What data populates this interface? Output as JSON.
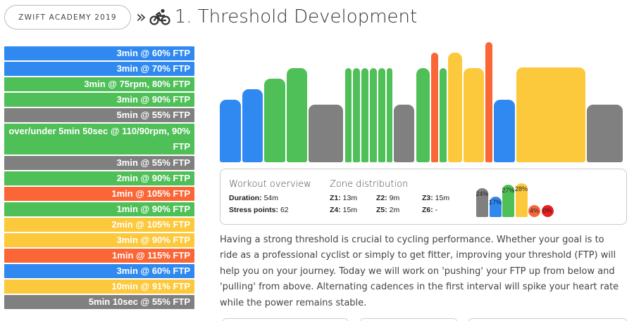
{
  "header": {
    "academy_button": "ZWIFT ACADEMY 2019",
    "separator": "»",
    "title": "1. Threshold Development"
  },
  "colors": {
    "blue": "#2f89f0",
    "green": "#4fbf58",
    "grey": "#808080",
    "yellow": "#fcc83c",
    "orange": "#fb6637",
    "red": "#ec1f1f"
  },
  "intervals": [
    {
      "label": "3min @ 60% FTP",
      "zone": "blue"
    },
    {
      "label": "3min @ 70% FTP",
      "zone": "blue"
    },
    {
      "label": "3min @ 75rpm, 80% FTP",
      "zone": "green"
    },
    {
      "label": "3min @ 90% FTP",
      "zone": "green"
    },
    {
      "label": "5min @ 55% FTP",
      "zone": "grey"
    },
    {
      "label": "over/under 5min 50sec @ 110/90rpm, 90% FTP",
      "zone": "green",
      "tall": true
    },
    {
      "label": "3min @ 55% FTP",
      "zone": "grey"
    },
    {
      "label": "2min @ 90% FTP",
      "zone": "green"
    },
    {
      "label": "1min @ 105% FTP",
      "zone": "orange"
    },
    {
      "label": "1min @ 90% FTP",
      "zone": "green"
    },
    {
      "label": "2min @ 105% FTP",
      "zone": "yellow"
    },
    {
      "label": "3min @ 90% FTP",
      "zone": "yellow"
    },
    {
      "label": "1min @ 115% FTP",
      "zone": "orange"
    },
    {
      "label": "3min @ 60% FTP",
      "zone": "blue"
    },
    {
      "label": "10min @ 91% FTP",
      "zone": "yellow"
    },
    {
      "label": "5min 10sec @ 55% FTP",
      "zone": "grey"
    }
  ],
  "workout_profile": [
    {
      "duration_min": 3,
      "ftp_pct": 60,
      "zone": "blue"
    },
    {
      "duration_min": 3,
      "ftp_pct": 70,
      "zone": "blue"
    },
    {
      "duration_min": 3,
      "ftp_pct": 80,
      "zone": "green"
    },
    {
      "duration_min": 3,
      "ftp_pct": 90,
      "zone": "green"
    },
    {
      "duration_min": 5,
      "ftp_pct": 55,
      "zone": "grey"
    },
    {
      "duration_min": 1,
      "ftp_pct": 90,
      "zone": "green"
    },
    {
      "duration_min": 1,
      "ftp_pct": 90,
      "zone": "green"
    },
    {
      "duration_min": 1,
      "ftp_pct": 90,
      "zone": "green"
    },
    {
      "duration_min": 1,
      "ftp_pct": 90,
      "zone": "green"
    },
    {
      "duration_min": 1,
      "ftp_pct": 90,
      "zone": "green"
    },
    {
      "duration_min": 0.83,
      "ftp_pct": 90,
      "zone": "green"
    },
    {
      "duration_min": 3,
      "ftp_pct": 55,
      "zone": "grey"
    },
    {
      "duration_min": 2,
      "ftp_pct": 90,
      "zone": "green"
    },
    {
      "duration_min": 1,
      "ftp_pct": 105,
      "zone": "orange"
    },
    {
      "duration_min": 1,
      "ftp_pct": 90,
      "zone": "green"
    },
    {
      "duration_min": 2,
      "ftp_pct": 105,
      "zone": "yellow"
    },
    {
      "duration_min": 3,
      "ftp_pct": 90,
      "zone": "yellow"
    },
    {
      "duration_min": 1,
      "ftp_pct": 115,
      "zone": "orange"
    },
    {
      "duration_min": 3,
      "ftp_pct": 60,
      "zone": "blue"
    },
    {
      "duration_min": 10,
      "ftp_pct": 91,
      "zone": "yellow"
    },
    {
      "duration_min": 5.17,
      "ftp_pct": 55,
      "zone": "grey"
    }
  ],
  "overview": {
    "heading": "Workout overview",
    "duration_label": "Duration:",
    "duration_value": "54m",
    "stress_label": "Stress points:",
    "stress_value": "62"
  },
  "zones": {
    "heading": "Zone distribution",
    "z1_label": "Z1:",
    "z1_value": "13m",
    "z2_label": "Z2:",
    "z2_value": "9m",
    "z3_label": "Z3:",
    "z3_value": "15m",
    "z4_label": "Z4:",
    "z4_value": "15m",
    "z5_label": "Z5:",
    "z5_value": "2m",
    "z6_label": "Z6:",
    "z6_value": "-"
  },
  "zone_distribution": [
    {
      "percent": 24,
      "label": "24%",
      "zone": "grey"
    },
    {
      "percent": 17,
      "label": "17%",
      "zone": "blue"
    },
    {
      "percent": 27,
      "label": "27%",
      "zone": "green"
    },
    {
      "percent": 28,
      "label": "28%",
      "zone": "yellow"
    },
    {
      "percent": 4,
      "label": "4%",
      "zone": "orange"
    },
    {
      "percent": 0,
      "label": "0%",
      "zone": "red"
    }
  ],
  "description": "Having a strong threshold is crucial to cycling performance. Whether your goal is to ride as a professional cyclist or simply to get fitter, improving your threshold (FTP) will help you on your journey. Today we will work on 'pushing' your FTP up from below and 'pulling' from above. Alternating cadences in the first interval will spike your heart rate while the power remains stable."
}
